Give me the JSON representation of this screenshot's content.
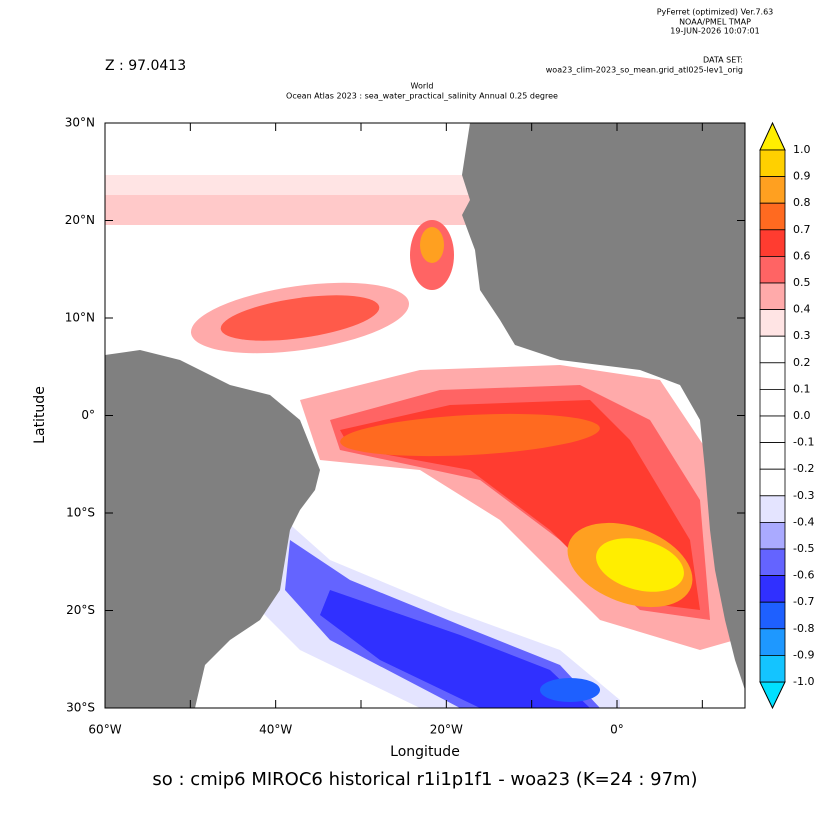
{
  "header": {
    "software": "PyFerret (optimized) Ver.7.63",
    "org": "NOAA/PMEL TMAP",
    "timestamp": "19-JUN-2026 10:07:01",
    "dataset_label": "DATA SET:",
    "dataset": "woa23_clim-2023_so_mean.grid_atl025-lev1_orig",
    "z_label": "Z : 97.0413",
    "title": "World",
    "subtitle": "Ocean Atlas 2023 : sea_water_practical_salinity Annual  0.25 degree"
  },
  "axes": {
    "x_label": "Longitude",
    "y_label": "Latitude",
    "xlim": [
      -60,
      15
    ],
    "ylim": [
      -30,
      30
    ],
    "xticks": [
      {
        "value": -60,
        "label": "60°W"
      },
      {
        "value": -50,
        "label": null
      },
      {
        "value": -40,
        "label": "40°W"
      },
      {
        "value": -30,
        "label": null
      },
      {
        "value": -20,
        "label": "20°W"
      },
      {
        "value": -10,
        "label": null
      },
      {
        "value": 0,
        "label": "0°"
      },
      {
        "value": 10,
        "label": null
      }
    ],
    "yticks": [
      {
        "value": 30,
        "label": "30°N"
      },
      {
        "value": 20,
        "label": "20°N"
      },
      {
        "value": 10,
        "label": "10°N"
      },
      {
        "value": 0,
        "label": "0°"
      },
      {
        "value": -10,
        "label": "10°S"
      },
      {
        "value": -20,
        "label": "20°S"
      },
      {
        "value": -30,
        "label": "30°S"
      }
    ]
  },
  "colorbar": {
    "over_color": "#ffee00",
    "under_color": "#00e0ff",
    "labels": [
      "1.0",
      "0.9",
      "0.8",
      "0.7",
      "0.6",
      "0.5",
      "0.4",
      "0.3",
      "0.2",
      "0.1",
      "0.0",
      "-0.1",
      "-0.2",
      "-0.3",
      "-0.4",
      "-0.5",
      "-0.6",
      "-0.7",
      "-0.8",
      "-0.9",
      "-1.0"
    ],
    "colors": [
      "#ffd000",
      "#ffa020",
      "#ff6a20",
      "#ff3c30",
      "#ff6464",
      "#ffaaaa",
      "#ffe4e4",
      "#ffffff",
      "#ffffff",
      "#ffffff",
      "#ffffff",
      "#ffffff",
      "#ffffff",
      "#e4e4ff",
      "#aaaaff",
      "#6464ff",
      "#3030ff",
      "#1e60ff",
      "#1e98ff",
      "#14c4ff"
    ]
  },
  "footer": "so : cmip6 MIROC6 historical r1i1p1f1 - woa23  (K=24 : 97m)"
}
